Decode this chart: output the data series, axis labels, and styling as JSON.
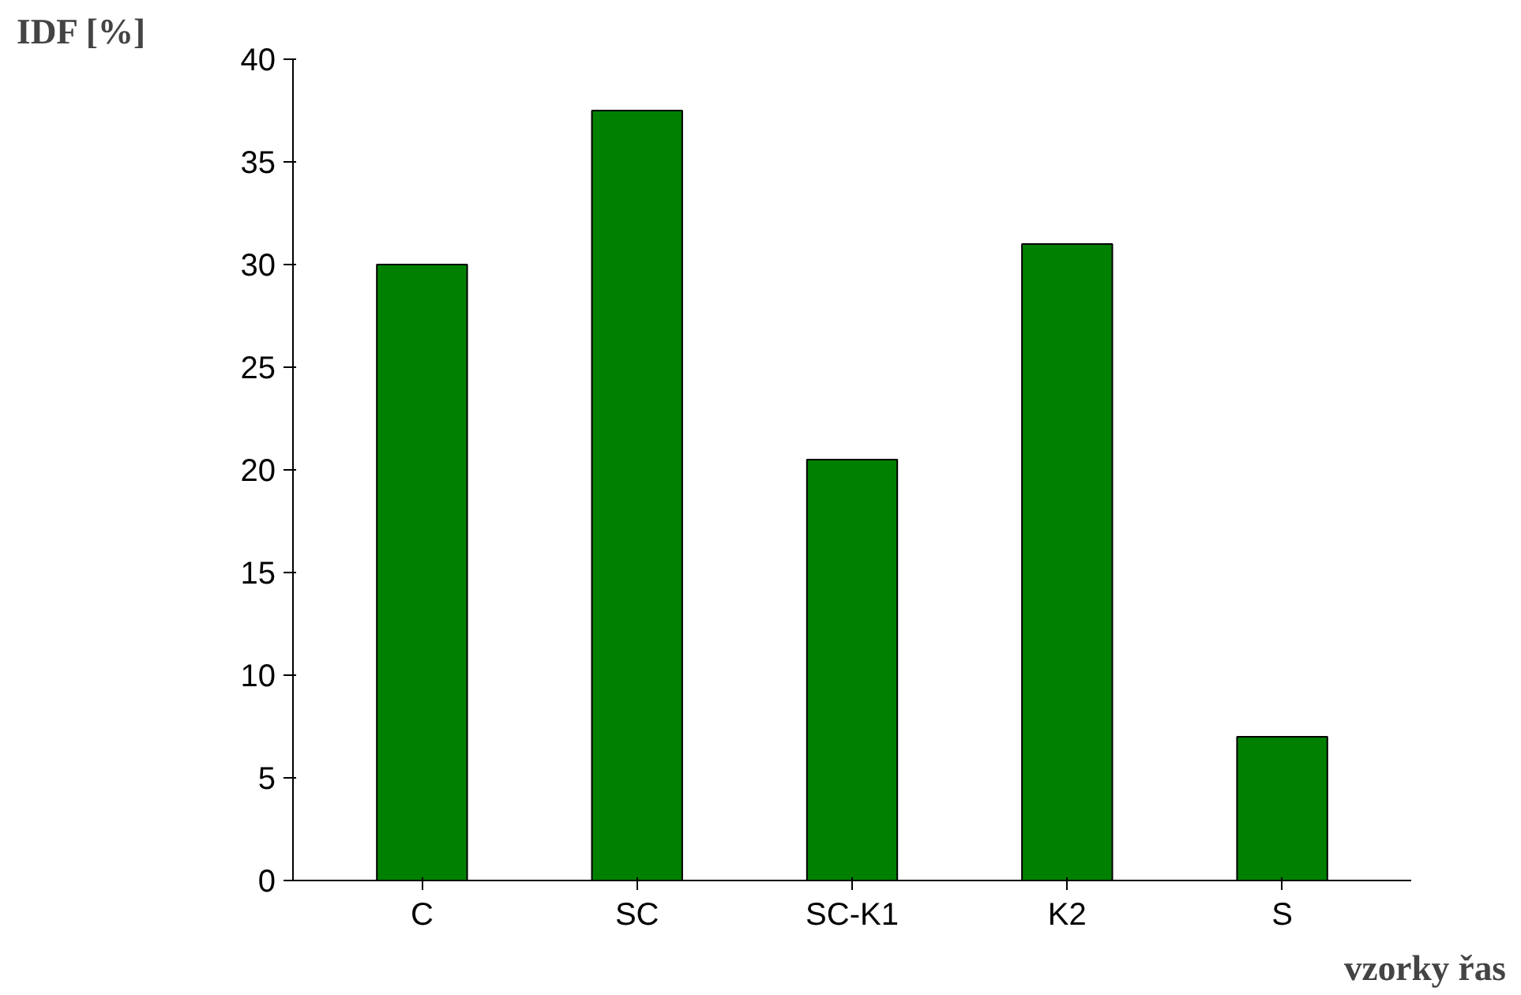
{
  "chart_data": {
    "type": "bar",
    "ylabel": "IDF [%]",
    "xlabel": "vzorky řas",
    "categories": [
      "C",
      "SC",
      "SC-K1",
      "K2",
      "S"
    ],
    "values": [
      30,
      37.5,
      20.5,
      31,
      7
    ],
    "color": "#008000",
    "ylim": [
      0,
      40
    ],
    "yticks": [
      0,
      5,
      10,
      15,
      20,
      25,
      30,
      35,
      40
    ],
    "grid": false
  }
}
